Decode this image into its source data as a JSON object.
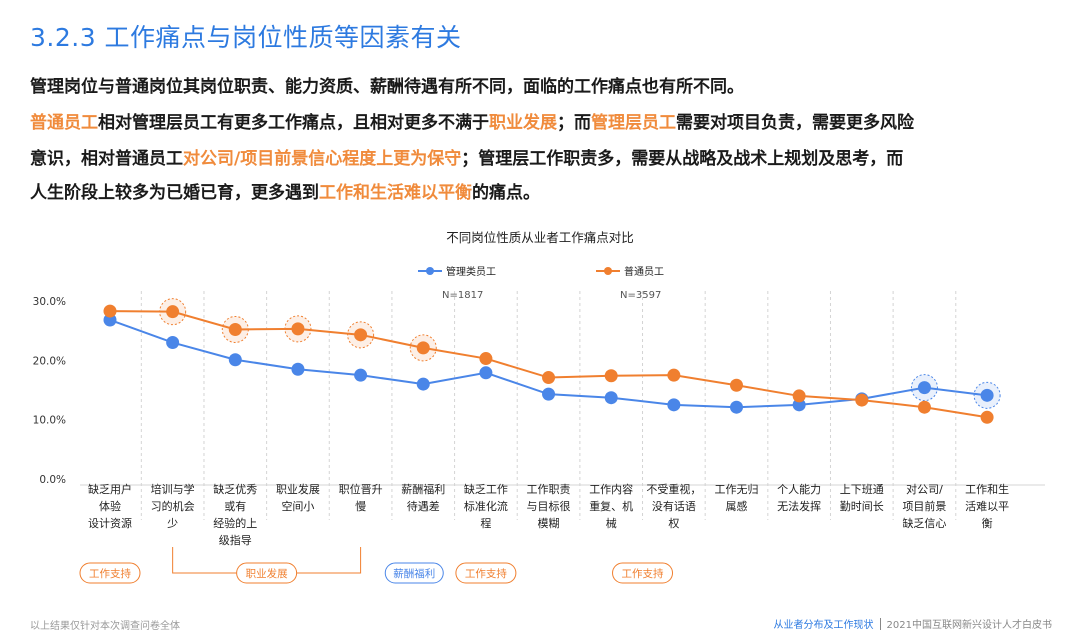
{
  "heading": "3.2.3 工作痛点与岗位性质等因素有关",
  "paragraph": {
    "line1": "管理岗位与普通岗位其岗位职责、能力资质、薪酬待遇有所不同，面临的工作痛点也有所不同。",
    "line2": [
      {
        "t": "普通员工",
        "hl": true
      },
      {
        "t": "相对管理层员工有更多工作痛点，且相对更多不满于",
        "hl": false
      },
      {
        "t": "职业发展",
        "hl": true
      },
      {
        "t": "；而",
        "hl": false
      },
      {
        "t": "管理层员工",
        "hl": true
      },
      {
        "t": "需要对项目负责，需要更多风险",
        "hl": false
      }
    ],
    "line3": [
      {
        "t": "意识，相对普通员工",
        "hl": false
      },
      {
        "t": "对公司/项目前景信心程度上更为保守",
        "hl": true
      },
      {
        "t": "；管理层工作职责多，需要从战略及战术上规划及思考，而",
        "hl": false
      }
    ],
    "line4": [
      {
        "t": "人生阶段上较多为已婚已育，更多遇到",
        "hl": false
      },
      {
        "t": "工作和生活难以平衡",
        "hl": true
      },
      {
        "t": "的痛点。",
        "hl": false
      }
    ]
  },
  "chart_data": {
    "type": "line",
    "title": "不同岗位性质从业者工作痛点对比",
    "categories": [
      [
        "缺乏用户",
        "体验",
        "设计资源"
      ],
      [
        "培训与学",
        "习的机会",
        "少"
      ],
      [
        "缺乏优秀",
        "或有",
        "经验的上",
        "级指导"
      ],
      [
        "职业发展",
        "空间小"
      ],
      [
        "职位晋升",
        "慢"
      ],
      [
        "薪酬福利",
        "待遇差"
      ],
      [
        "缺乏工作",
        "标准化流",
        "程"
      ],
      [
        "工作职责",
        "与目标很",
        "模糊"
      ],
      [
        "工作内容",
        "重复、机",
        "械"
      ],
      [
        "不受重视，",
        "没有话语",
        "权"
      ],
      [
        "工作无归",
        "属感"
      ],
      [
        "个人能力",
        "无法发挥"
      ],
      [
        "上下班通",
        "勤时间长"
      ],
      [
        "对公司/",
        "项目前景",
        "缺乏信心"
      ],
      [
        "工作和生",
        "活难以平",
        "衡"
      ]
    ],
    "series": [
      {
        "name": "管理类员工",
        "n": "N=1817",
        "color": "#4a86e8",
        "values": [
          26.8,
          23.0,
          20.1,
          18.5,
          17.5,
          16.0,
          17.9,
          14.3,
          13.7,
          12.5,
          12.1,
          12.5,
          13.5,
          15.4,
          14.1
        ]
      },
      {
        "name": "普通员工",
        "n": "N=3597",
        "color": "#f07f2f",
        "values": [
          28.3,
          28.2,
          25.2,
          25.3,
          24.3,
          22.1,
          20.3,
          17.1,
          17.4,
          17.5,
          15.8,
          14.0,
          13.3,
          12.1,
          10.4
        ]
      }
    ],
    "highlights": {
      "orange_indices": [
        1,
        2,
        3,
        4,
        5
      ],
      "blue_indices": [
        13,
        14
      ]
    },
    "yticks": [
      "0.0%",
      "10.0%",
      "20.0%",
      "30.0%"
    ],
    "ylim": [
      0,
      30
    ],
    "grid": false,
    "legend_position": "top",
    "tags": [
      {
        "label": "工作支持",
        "color": "#f07f2f"
      },
      {
        "label": "职业发展",
        "color": "#f07f2f"
      },
      {
        "label": "薪酬福利",
        "color": "#4a86e8"
      },
      {
        "label": "工作支持",
        "color": "#f07f2f"
      },
      {
        "label": "工作支持",
        "color": "#f07f2f"
      }
    ]
  },
  "footer": {
    "note": "以上结果仅针对本次调查问卷全体",
    "section": "从业者分布及工作现状",
    "report": "2021中国互联网新兴设计人才白皮书"
  }
}
